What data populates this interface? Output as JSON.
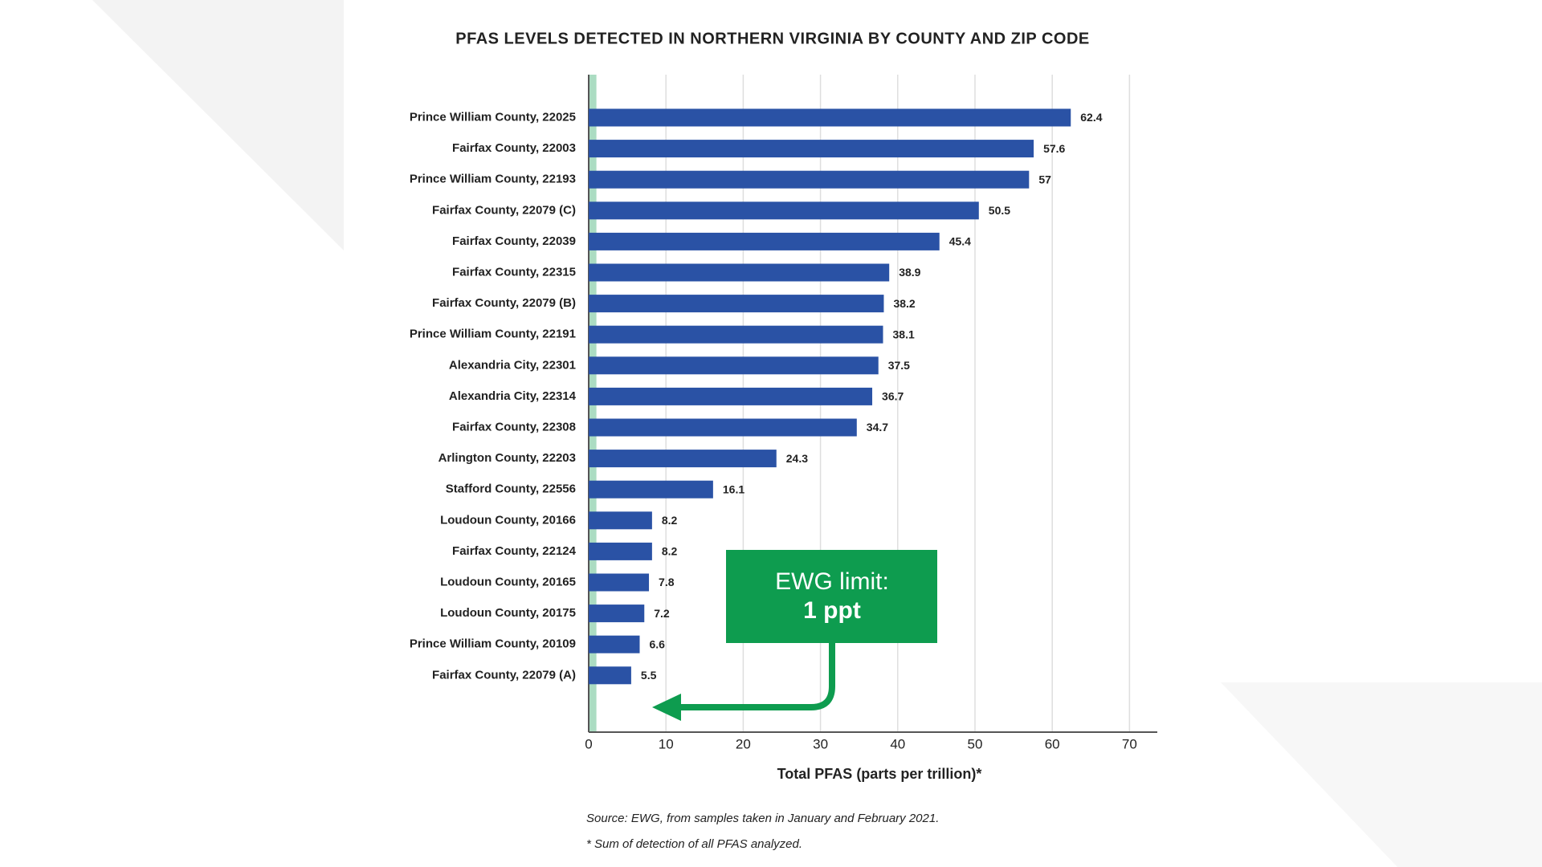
{
  "chart_data": {
    "type": "hbar",
    "title": "PFAS LEVELS DETECTED IN NORTHERN VIRGINIA BY COUNTY AND ZIP CODE",
    "categories": [
      "Prince William County, 22025",
      "Fairfax County, 22003",
      "Prince William County, 22193",
      "Fairfax County, 22079 (C)",
      "Fairfax County, 22039",
      "Fairfax County, 22315",
      "Fairfax County, 22079 (B)",
      "Prince William County, 22191",
      "Alexandria City, 22301",
      "Alexandria City, 22314",
      "Fairfax County, 22308",
      "Arlington County, 22203",
      "Stafford County, 22556",
      "Loudoun County, 20166",
      "Fairfax County, 22124",
      "Loudoun County, 20165",
      "Loudoun County, 20175",
      "Prince William County, 20109",
      "Fairfax County, 22079 (A)"
    ],
    "values": [
      62.4,
      57.6,
      57,
      50.5,
      45.4,
      38.9,
      38.2,
      38.1,
      37.5,
      36.7,
      34.7,
      24.3,
      16.1,
      8.2,
      8.2,
      7.8,
      7.2,
      6.6,
      5.5
    ],
    "color": "#2a52a5",
    "xlim": [
      0,
      73.6
    ],
    "xticks": [
      0,
      10,
      20,
      30,
      40,
      50,
      60,
      70
    ],
    "grid": true,
    "x_label": "Total PFAS (parts per trillion)*",
    "reference_line": {
      "value": 1,
      "label": "EWG limit:",
      "value_label": "1 ppt",
      "color": "#0e9c4f"
    },
    "source": "Source: EWG, from samples taken in January and February 2021.",
    "footnote": "* Sum of detection of all PFAS analyzed."
  }
}
